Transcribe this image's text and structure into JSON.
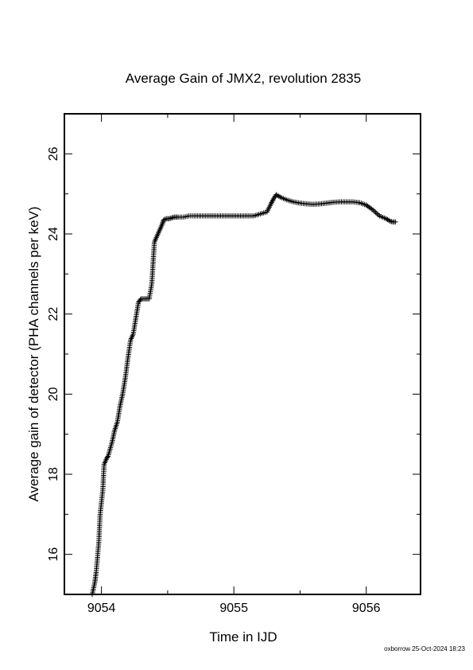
{
  "chart_data": {
    "type": "scatter",
    "marker": "plus",
    "title": "Average Gain of JMX2, revolution 2835",
    "xlabel": "Time in IJD",
    "ylabel": "Average gain of detector (PHA channels per keV)",
    "xlim": [
      9053.72,
      9056.41
    ],
    "ylim": [
      15.0,
      27.0
    ],
    "x_ticks": [
      9054,
      9055,
      9056
    ],
    "x_tick_labels": [
      "9054",
      "9055",
      "9056"
    ],
    "y_ticks": [
      16,
      18,
      20,
      22,
      24,
      26
    ],
    "y_tick_labels": [
      "16",
      "18",
      "20",
      "22",
      "24",
      "26"
    ],
    "grid": false,
    "legend": "none",
    "color": "#000000",
    "series": [
      {
        "x": [
          9053.93,
          9053.95,
          9053.96,
          9053.98,
          9053.99,
          9054.01,
          9054.02,
          9054.04,
          9054.05,
          9054.08,
          9054.1,
          9054.12,
          9054.14,
          9054.16,
          9054.18,
          9054.2,
          9054.22,
          9054.24,
          9054.26,
          9054.28,
          9054.3,
          9054.32,
          9054.34,
          9054.36,
          9054.38,
          9054.4,
          9054.42,
          9054.44,
          9054.46,
          9054.47,
          9054.49,
          9054.51,
          9054.53,
          9054.55,
          9054.58,
          9054.62,
          9054.66,
          9054.7,
          9054.75,
          9054.8,
          9054.85,
          9054.9,
          9054.95,
          9055.0,
          9055.05,
          9055.1,
          9055.15,
          9055.2,
          9055.25,
          9055.28,
          9055.3,
          9055.32,
          9055.35,
          9055.4,
          9055.45,
          9055.5,
          9055.55,
          9055.6,
          9055.65,
          9055.7,
          9055.75,
          9055.8,
          9055.85,
          9055.9,
          9055.95,
          9056.0,
          9056.05,
          9056.1,
          9056.15,
          9056.18,
          9056.2,
          9056.22
        ],
        "y": [
          15.0,
          15.3,
          15.55,
          16.3,
          17.0,
          17.6,
          18.25,
          18.4,
          18.45,
          18.8,
          19.1,
          19.3,
          19.7,
          20.0,
          20.4,
          20.9,
          21.35,
          21.5,
          21.9,
          22.3,
          22.38,
          22.38,
          22.38,
          22.38,
          22.75,
          23.8,
          23.95,
          24.1,
          24.25,
          24.35,
          24.38,
          24.38,
          24.4,
          24.42,
          24.42,
          24.42,
          24.45,
          24.45,
          24.45,
          24.45,
          24.45,
          24.45,
          24.45,
          24.45,
          24.45,
          24.45,
          24.45,
          24.5,
          24.55,
          24.75,
          24.88,
          24.98,
          24.92,
          24.85,
          24.8,
          24.77,
          24.75,
          24.74,
          24.75,
          24.77,
          24.79,
          24.8,
          24.8,
          24.8,
          24.78,
          24.72,
          24.6,
          24.45,
          24.38,
          24.32,
          24.3,
          24.3
        ]
      }
    ]
  },
  "footer": {
    "text": "oxborrow 25-Oct-2024 18:23"
  }
}
